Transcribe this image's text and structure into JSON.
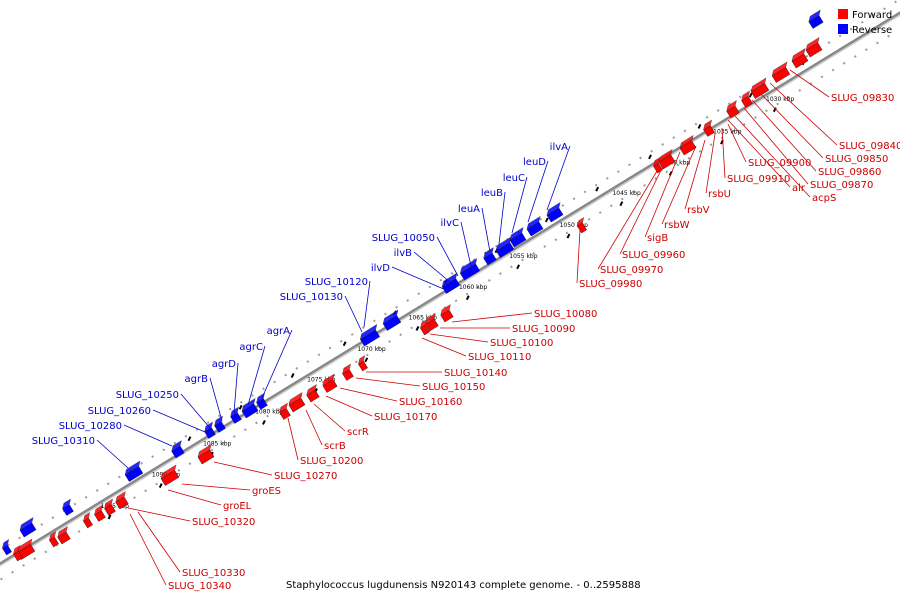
{
  "legend": {
    "forward_label": "Forward",
    "reverse_label": "Reverse",
    "forward_color": "#ff0000",
    "reverse_color": "#0000ff"
  },
  "footer": {
    "caption": "Staphylococcus lugdunensis N920143 complete genome. - 0..2595888"
  },
  "colors": {
    "backbone": "#888888",
    "forward_label": "#cc0000",
    "reverse_label": "#0000cc"
  },
  "ticks": [
    {
      "label": "1030 kbp"
    },
    {
      "label": "1035 kbp"
    },
    {
      "label": "1040 kbp"
    },
    {
      "label": "1045 kbp"
    },
    {
      "label": "1050 kbp"
    },
    {
      "label": "1055 kbp"
    },
    {
      "label": "1060 kbp"
    },
    {
      "label": "1065 kbp"
    },
    {
      "label": "1070 kbp"
    },
    {
      "label": "1075 kbp"
    },
    {
      "label": "1080 kbp"
    },
    {
      "label": "1085 kbp"
    },
    {
      "label": "1090 kbp"
    },
    {
      "label": "1095 kbp"
    }
  ],
  "reverse_labels": [
    "ilvA",
    "leuD",
    "leuC",
    "leuB",
    "leuA",
    "ilvC",
    "SLUG_10050",
    "ilvB",
    "ilvD",
    "SLUG_10120",
    "SLUG_10130",
    "agrA",
    "agrC",
    "agrD",
    "agrB",
    "SLUG_10250",
    "SLUG_10260",
    "SLUG_10280",
    "SLUG_10310"
  ],
  "forward_labels": [
    "SLUG_09830",
    "SLUG_09840",
    "SLUG_09850",
    "SLUG_09860",
    "SLUG_09870",
    "acpS",
    "alr",
    "SLUG_09900",
    "SLUG_09910",
    "rsbU",
    "rsbV",
    "rsbW",
    "sigB",
    "SLUG_09960",
    "SLUG_09970",
    "SLUG_09980",
    "SLUG_10080",
    "SLUG_10090",
    "SLUG_10100",
    "SLUG_10110",
    "SLUG_10140",
    "SLUG_10150",
    "SLUG_10160",
    "SLUG_10170",
    "scrR",
    "scrB",
    "SLUG_10200",
    "SLUG_10270",
    "groES",
    "groEL",
    "SLUG_10320",
    "SLUG_10330",
    "SLUG_10340"
  ]
}
